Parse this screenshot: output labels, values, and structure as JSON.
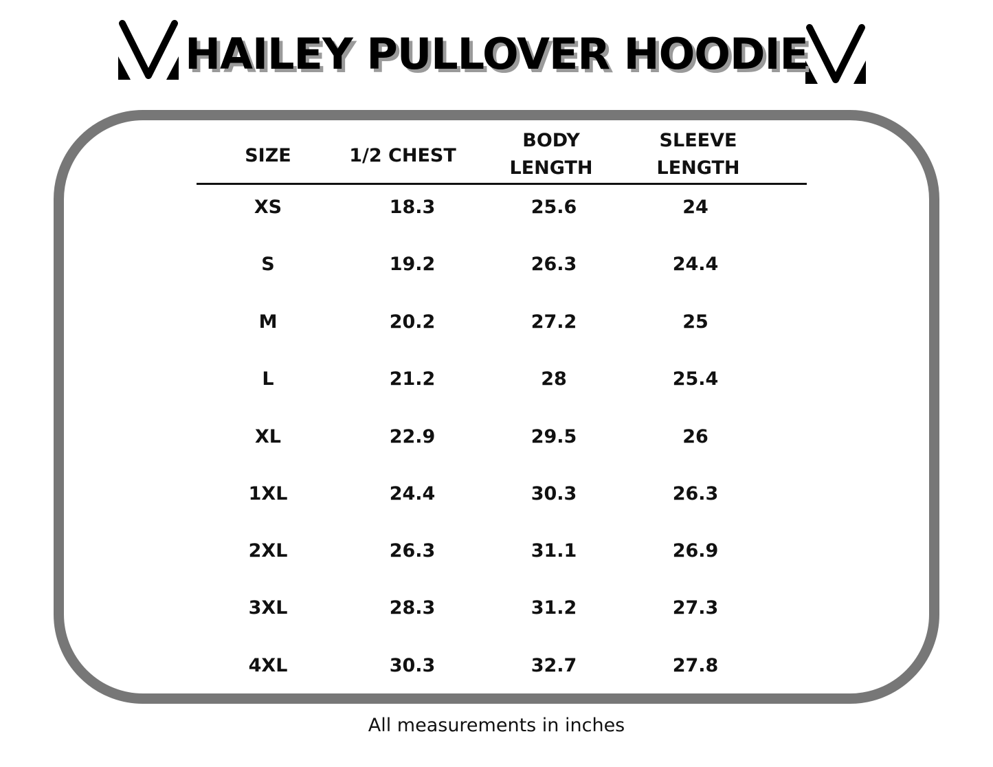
{
  "title": "HAILEY PULLOVER HOODIE",
  "logo": "V-triangle-mark",
  "table": {
    "headers": [
      [
        "SIZE"
      ],
      [
        "1/2 CHEST"
      ],
      [
        "BODY",
        "LENGTH"
      ],
      [
        "SLEEVE",
        "LENGTH"
      ]
    ],
    "rows": [
      [
        "XS",
        "18.3",
        "25.6",
        "24"
      ],
      [
        "S",
        "19.2",
        "26.3",
        "24.4"
      ],
      [
        "M",
        "20.2",
        "27.2",
        "25"
      ],
      [
        "L",
        "21.2",
        "28",
        "25.4"
      ],
      [
        "XL",
        "22.9",
        "29.5",
        "26"
      ],
      [
        "1XL",
        "24.4",
        "30.3",
        "26.3"
      ],
      [
        "2XL",
        "26.3",
        "31.1",
        "26.9"
      ],
      [
        "3XL",
        "28.3",
        "31.2",
        "27.3"
      ],
      [
        "4XL",
        "30.3",
        "32.7",
        "27.8"
      ]
    ]
  },
  "note": "All measurements in inches"
}
